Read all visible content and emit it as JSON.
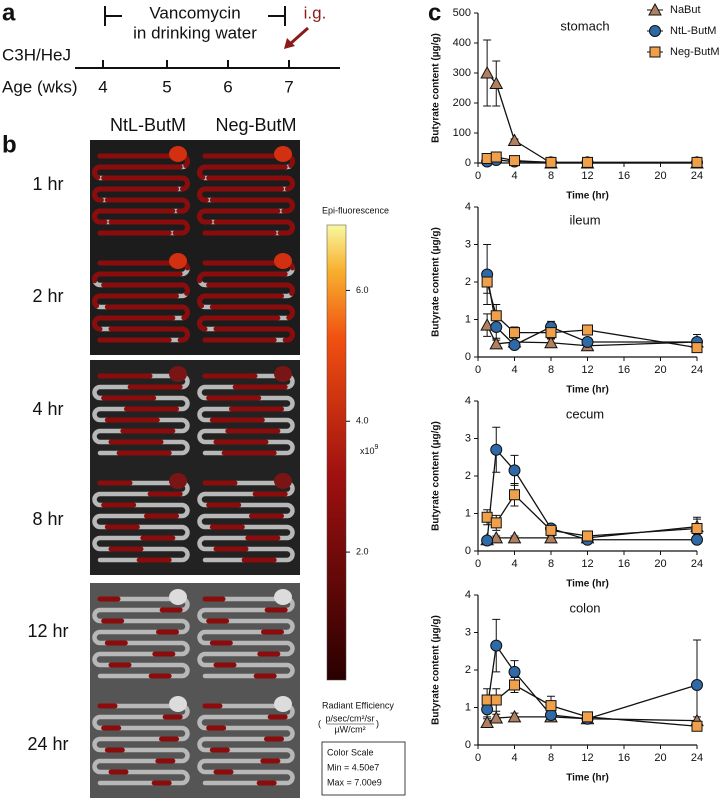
{
  "panel_a": {
    "label": "a",
    "treatment": [
      "Vancomycin",
      "in drinking water"
    ],
    "gavage": "i.g.",
    "strain": "C3H/HeJ",
    "age_label": "Age (wks)",
    "ages": [
      4,
      5,
      6,
      7
    ]
  },
  "panel_b": {
    "label": "b",
    "groups": [
      "NtL-ButM",
      "Neg-ButM"
    ],
    "timepoints": [
      "1 hr",
      "2 hr",
      "4 hr",
      "8 hr",
      "12 hr",
      "24 hr"
    ],
    "colorbar": {
      "title": "Epi-fluorescence",
      "range": [
        0.045,
        7.0
      ],
      "ticks": [
        {
          "value": 2,
          "label": "2.0"
        },
        {
          "value": 4,
          "label": "4.0"
        },
        {
          "value": 6,
          "label": "6.0"
        }
      ],
      "multiplier": "x10",
      "exponent": "9",
      "unit_title": "Radiant Efficiency",
      "unit_numerator": "p/sec/cm²/sr",
      "unit_denominator": "µW/cm²",
      "scale_title": "Color Scale",
      "scale_min": "Min = 4.50e7",
      "scale_max": "Max = 7.00e9"
    }
  },
  "panel_c": {
    "label": "c"
  },
  "chart_data": [
    {
      "type": "line",
      "title": "stomach",
      "x_label": "Time (hr)",
      "y_label": "Butyrate content (µg/g)",
      "x": [
        1,
        2,
        4,
        8,
        12,
        24
      ],
      "xlim": [
        0,
        24
      ],
      "xticks": [
        0,
        4,
        8,
        12,
        16,
        20,
        24
      ],
      "ylim": [
        0,
        500
      ],
      "yticks": [
        0,
        100,
        200,
        300,
        400,
        500
      ],
      "series": [
        {
          "name": "NaBut",
          "color": "#b08060",
          "marker": "triangle",
          "values": [
            300,
            265,
            75,
            0,
            0,
            0
          ],
          "errors": [
            110,
            75,
            5,
            0,
            0,
            0
          ]
        },
        {
          "name": "NtL-ButM",
          "color": "#2e6aa8",
          "marker": "circle",
          "values": [
            5,
            10,
            5,
            2,
            2,
            2
          ],
          "errors": [
            3,
            3,
            2,
            0,
            0,
            0
          ]
        },
        {
          "name": "Neg-ButM",
          "color": "#f0a04b",
          "marker": "square",
          "values": [
            15,
            20,
            8,
            2,
            2,
            2
          ],
          "errors": [
            5,
            5,
            3,
            0,
            0,
            0
          ]
        }
      ]
    },
    {
      "type": "line",
      "title": "ileum",
      "x_label": "Time (hr)",
      "y_label": "Butyrate content (µg/g)",
      "x": [
        1,
        2,
        4,
        8,
        12,
        24
      ],
      "xlim": [
        0,
        24
      ],
      "xticks": [
        0,
        4,
        8,
        12,
        16,
        20,
        24
      ],
      "ylim": [
        0,
        4
      ],
      "yticks": [
        0,
        1,
        2,
        3,
        4
      ],
      "series": [
        {
          "name": "NaBut",
          "color": "#b08060",
          "marker": "triangle",
          "values": [
            0.85,
            0.35,
            0.4,
            0.38,
            0.3,
            0.4
          ],
          "errors": [
            0.3,
            0.1,
            0.1,
            0.1,
            0.05,
            0.1
          ]
        },
        {
          "name": "NtL-ButM",
          "color": "#2e6aa8",
          "marker": "circle",
          "values": [
            2.2,
            0.8,
            0.32,
            0.8,
            0.4,
            0.4
          ],
          "errors": [
            0.8,
            0.3,
            0.1,
            0.15,
            0.1,
            0.2
          ]
        },
        {
          "name": "Neg-ButM",
          "color": "#f0a04b",
          "marker": "square",
          "values": [
            2.0,
            1.1,
            0.65,
            0.65,
            0.72,
            0.25
          ],
          "errors": [
            0.3,
            0.3,
            0.15,
            0.15,
            0.1,
            0.1
          ]
        }
      ]
    },
    {
      "type": "line",
      "title": "cecum",
      "x_label": "Time (hr)",
      "y_label": "Butyrate content (µg/g)",
      "x": [
        1,
        2,
        4,
        8,
        12,
        24
      ],
      "xlim": [
        0,
        24
      ],
      "xticks": [
        0,
        4,
        8,
        12,
        16,
        20,
        24
      ],
      "ylim": [
        0,
        4
      ],
      "yticks": [
        0,
        1,
        2,
        3,
        4
      ],
      "series": [
        {
          "name": "NaBut",
          "color": "#b08060",
          "marker": "triangle",
          "values": [
            0.3,
            0.35,
            0.35,
            0.35,
            0.35,
            0.65
          ],
          "errors": [
            0.05,
            0.05,
            0.05,
            0.05,
            0.05,
            0.2
          ]
        },
        {
          "name": "NtL-ButM",
          "color": "#2e6aa8",
          "marker": "circle",
          "values": [
            0.28,
            2.7,
            2.15,
            0.6,
            0.3,
            0.3
          ],
          "errors": [
            0.05,
            0.6,
            0.4,
            0.1,
            0.1,
            0.05
          ]
        },
        {
          "name": "Neg-ButM",
          "color": "#f0a04b",
          "marker": "square",
          "values": [
            0.9,
            0.75,
            1.5,
            0.55,
            0.4,
            0.6
          ],
          "errors": [
            0.2,
            0.2,
            0.3,
            0.1,
            0.1,
            0.3
          ]
        }
      ]
    },
    {
      "type": "line",
      "title": "colon",
      "x_label": "Time (hr)",
      "y_label": "Butyrate content (µg/g)",
      "x": [
        1,
        2,
        4,
        8,
        12,
        24
      ],
      "xlim": [
        0,
        24
      ],
      "xticks": [
        0,
        4,
        8,
        12,
        16,
        20,
        24
      ],
      "ylim": [
        0,
        4
      ],
      "yticks": [
        0,
        1,
        2,
        3,
        4
      ],
      "series": [
        {
          "name": "NaBut",
          "color": "#b08060",
          "marker": "triangle",
          "values": [
            0.6,
            0.72,
            0.75,
            0.75,
            0.7,
            0.65
          ],
          "errors": [
            0.1,
            0.1,
            0.1,
            0.1,
            0.1,
            0.1
          ]
        },
        {
          "name": "NtL-ButM",
          "color": "#2e6aa8",
          "marker": "circle",
          "values": [
            0.95,
            2.65,
            1.95,
            0.8,
            0.7,
            1.6
          ],
          "errors": [
            0.2,
            0.7,
            0.3,
            0.1,
            0.1,
            1.2
          ]
        },
        {
          "name": "Neg-ButM",
          "color": "#f0a04b",
          "marker": "square",
          "values": [
            1.2,
            1.2,
            1.6,
            1.05,
            0.75,
            0.5
          ],
          "errors": [
            0.3,
            0.3,
            0.2,
            0.25,
            0.1,
            0.1
          ]
        }
      ]
    }
  ]
}
